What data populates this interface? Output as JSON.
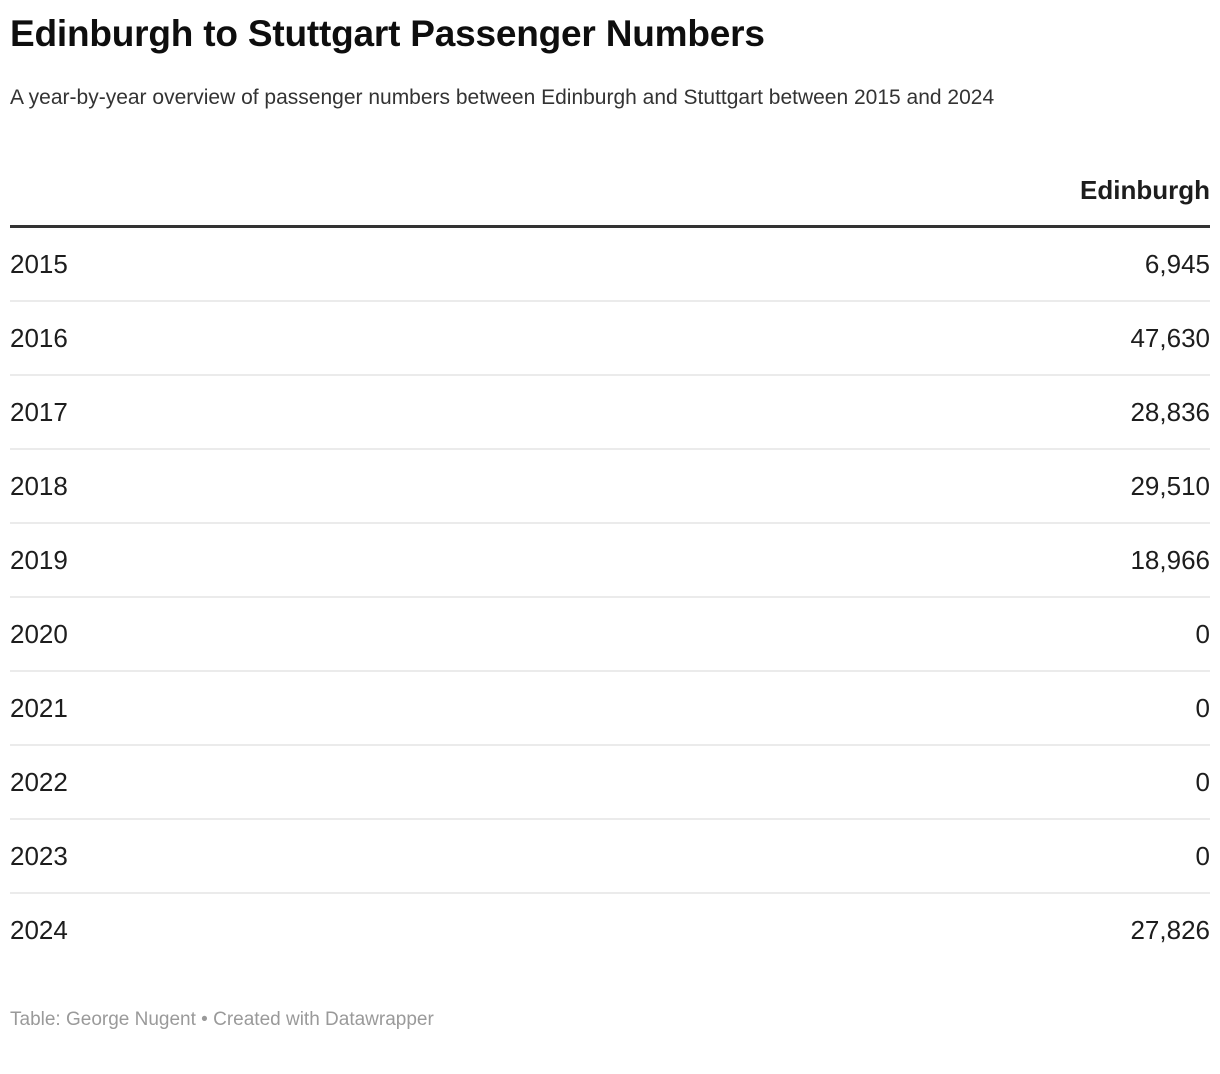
{
  "chart": {
    "title": "Edinburgh to Stuttgart Passenger Numbers",
    "subtitle": "A year-by-year overview of passenger numbers between Edinburgh and Stuttgart between 2015 and 2024",
    "footer": "Table: George Nugent • Created with Datawrapper"
  },
  "chart_data": {
    "type": "table",
    "columns": [
      "",
      "Edinburgh"
    ],
    "categories": [
      "2015",
      "2016",
      "2017",
      "2018",
      "2019",
      "2020",
      "2021",
      "2022",
      "2023",
      "2024"
    ],
    "values": [
      6945,
      47630,
      28836,
      29510,
      18966,
      0,
      0,
      0,
      0,
      27826
    ],
    "rows": [
      [
        "2015",
        "6,945"
      ],
      [
        "2016",
        "47,630"
      ],
      [
        "2017",
        "28,836"
      ],
      [
        "2018",
        "29,510"
      ],
      [
        "2019",
        "18,966"
      ],
      [
        "2020",
        "0"
      ],
      [
        "2021",
        "0"
      ],
      [
        "2022",
        "0"
      ],
      [
        "2023",
        "0"
      ],
      [
        "2024",
        "27,826"
      ]
    ],
    "title": "Edinburgh to Stuttgart Passenger Numbers",
    "value_column_header": "Edinburgh",
    "legend_position": "none",
    "grid": "row-separators"
  },
  "colors": {
    "title_text": "#0e0e0e",
    "subtitle_text": "#333333",
    "body_text": "#1d1d1d",
    "header_rule": "#333333",
    "row_separator": "#ebebeb",
    "footer_text": "#9a9a9a",
    "background": "#ffffff"
  }
}
